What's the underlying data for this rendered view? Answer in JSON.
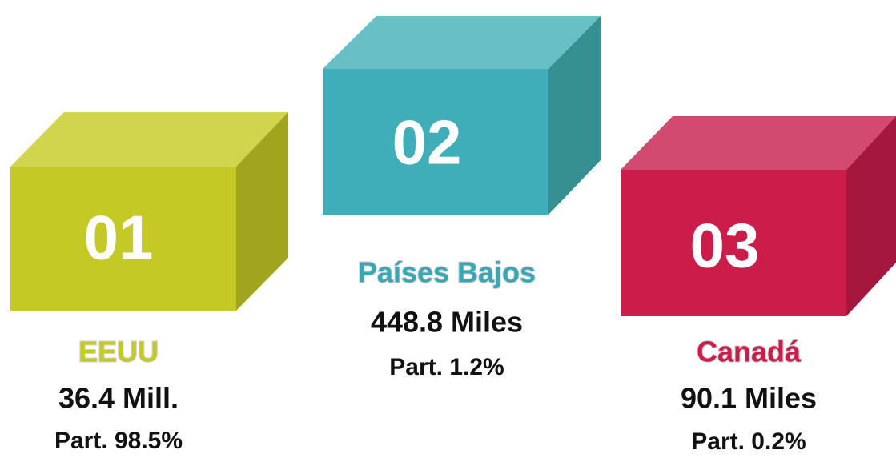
{
  "items": [
    {
      "rank": "01",
      "name": "EEUU",
      "value": "36.4 Mill.",
      "share": "Part. 98.5%"
    },
    {
      "rank": "02",
      "name": "Países Bajos",
      "value": "448.8 Miles",
      "share": "Part. 1.2%"
    },
    {
      "rank": "03",
      "name": "Canadá",
      "value": "90.1 Miles",
      "share": "Part. 0.2%"
    }
  ]
}
